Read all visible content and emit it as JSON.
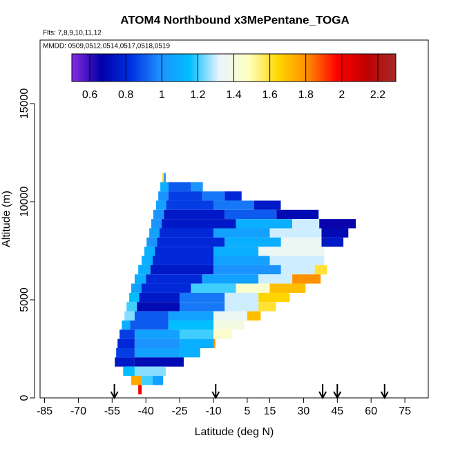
{
  "chart_data": {
    "type": "heatmap",
    "title": "ATOM4 Northbound x3MePentane_TOGA",
    "flights_label": "Flts: 7,8,9,10,11,12",
    "dates_label": "MMDD: 0509,0512,0514,0517,0518,0519",
    "x_label": "Latitude (deg N)",
    "y_label": "Altitude (m)",
    "xlim": [
      -87,
      85.4
    ],
    "ylim": [
      0,
      18240
    ],
    "xticks": [
      -85,
      -70,
      -55,
      -40,
      -25,
      -10,
      5,
      15,
      30,
      45,
      60,
      75
    ],
    "yticks": [
      0,
      5000,
      10000,
      15000
    ],
    "colorbar": {
      "range": [
        0.5,
        2.3
      ],
      "ticks": [
        0.6,
        0.8,
        1.0,
        1.2,
        1.4,
        1.6,
        1.8,
        2.0,
        2.2
      ],
      "colors": [
        "#8a2be2",
        "#0000a8",
        "#0030e0",
        "#1e90ff",
        "#00bfff",
        "#e8f4ff",
        "#ffffc0",
        "#ffd700",
        "#ff8c00",
        "#ff0000",
        "#c00000",
        "#a52a2a"
      ]
    },
    "arrows": [
      -54,
      -9,
      38.5,
      45,
      66
    ],
    "rows": [
      {
        "alt": 11230,
        "lat": [
          -32.7,
          -32,
          -31.2
        ],
        "values": [
          1.6,
          1.0
        ]
      },
      {
        "alt": 10760,
        "lat": [
          -33.6,
          -30,
          -20,
          -14.7
        ],
        "values": [
          1.1,
          0.9,
          1.0
        ]
      },
      {
        "alt": 10290,
        "lat": [
          -34.5,
          -30,
          -15,
          -5,
          2.5
        ],
        "values": [
          1.0,
          0.85,
          0.95,
          0.8
        ]
      },
      {
        "alt": 9820,
        "lat": [
          -35.5,
          -31,
          -10,
          8,
          19.9
        ],
        "values": [
          1.05,
          0.85,
          0.95,
          0.75
        ]
      },
      {
        "alt": 9350,
        "lat": [
          -36.7,
          -32,
          -5,
          18,
          36.7
        ],
        "values": [
          1.0,
          0.75,
          0.9,
          0.7
        ]
      },
      {
        "alt": 8880,
        "lat": [
          -37.6,
          -33,
          0,
          25,
          37,
          53.2
        ],
        "values": [
          1.0,
          0.75,
          1.1,
          1.3,
          0.65
        ]
      },
      {
        "alt": 8410,
        "lat": [
          -38.5,
          -34,
          -10,
          15,
          38,
          49.9
        ],
        "values": [
          1.05,
          0.8,
          1.05,
          1.3,
          0.7
        ]
      },
      {
        "alt": 7940,
        "lat": [
          -39.7,
          -35,
          -5,
          20,
          38,
          47.7
        ],
        "values": [
          1.0,
          0.8,
          1.1,
          1.35,
          0.75
        ]
      },
      {
        "alt": 7470,
        "lat": [
          -40.7,
          -36,
          -10,
          10,
          39.2
        ],
        "values": [
          1.1,
          0.8,
          1.1,
          1.35
        ]
      },
      {
        "alt": 7000,
        "lat": [
          -41.9,
          -37,
          -10,
          15,
          39.2
        ],
        "values": [
          1.1,
          0.8,
          1.05,
          1.3
        ]
      },
      {
        "alt": 6530,
        "lat": [
          -43.4,
          -38,
          -10,
          20,
          35,
          40.4
        ],
        "values": [
          1.1,
          0.75,
          1.0,
          1.3,
          1.6
        ]
      },
      {
        "alt": 6060,
        "lat": [
          -45,
          -40,
          -15,
          10,
          25,
          37.6
        ],
        "values": [
          1.1,
          0.8,
          1.05,
          1.3,
          1.8
        ]
      },
      {
        "alt": 5590,
        "lat": [
          -46.5,
          -42,
          -20,
          0,
          15,
          30.9
        ],
        "values": [
          1.05,
          0.8,
          1.2,
          1.45,
          1.7
        ]
      },
      {
        "alt": 5120,
        "lat": [
          -47.4,
          -43,
          -25,
          -5,
          10,
          23.9
        ],
        "values": [
          1.15,
          0.75,
          0.95,
          1.3,
          1.65
        ]
      },
      {
        "alt": 4650,
        "lat": [
          -48.6,
          -44,
          -25,
          -5,
          10,
          17.8
        ],
        "values": [
          1.2,
          0.7,
          0.95,
          1.3,
          1.6
        ]
      },
      {
        "alt": 4180,
        "lat": [
          -49.5,
          -45,
          -30,
          -10,
          5,
          11.0
        ],
        "values": [
          1.25,
          0.9,
          1.05,
          1.35,
          1.7
        ]
      },
      {
        "alt": 3710,
        "lat": [
          -50.7,
          -47,
          -30,
          -10,
          3.7
        ],
        "values": [
          1.1,
          0.9,
          1.15,
          1.4
        ]
      },
      {
        "alt": 3240,
        "lat": [
          -51.7,
          -45,
          -25,
          -10,
          -1.8
        ],
        "values": [
          0.85,
          1.05,
          1.2,
          1.45
        ]
      },
      {
        "alt": 2770,
        "lat": [
          -52.6,
          -45,
          -25,
          -10,
          -9.2
        ],
        "values": [
          0.8,
          1.0,
          1.1,
          1.8
        ]
      },
      {
        "alt": 2300,
        "lat": [
          -53.2,
          -45,
          -25,
          -15.9
        ],
        "values": [
          0.85,
          1.05,
          1.1
        ]
      },
      {
        "alt": 1830,
        "lat": [
          -53.8,
          -45,
          -23.2
        ],
        "values": [
          0.75,
          0.7
        ]
      },
      {
        "alt": 1360,
        "lat": [
          -50.1,
          -45,
          -31.2
        ],
        "values": [
          1.15,
          1.25
        ]
      },
      {
        "alt": 890,
        "lat": [
          -46.5,
          -42,
          -37,
          -32.4
        ],
        "values": [
          1.75,
          1.2,
          1.05
        ]
      },
      {
        "alt": 420,
        "lat": [
          -43.4,
          -41.9
        ],
        "values": [
          2.0
        ]
      }
    ]
  }
}
